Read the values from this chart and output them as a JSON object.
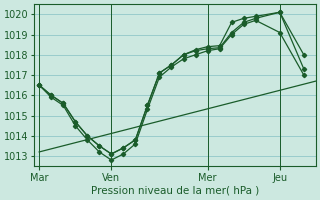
{
  "background_color": "#cce8e0",
  "grid_color": "#99cccc",
  "line_color": "#1a5c2a",
  "marker_color": "#1a5c2a",
  "xlabel": "Pression niveau de la mer( hPa )",
  "ylim": [
    1012.5,
    1020.5
  ],
  "yticks": [
    1013,
    1014,
    1015,
    1016,
    1017,
    1018,
    1019,
    1020
  ],
  "xtick_labels": [
    "Mar",
    "Ven",
    "Mer",
    "Jeu"
  ],
  "xtick_positions": [
    0,
    3,
    7,
    10
  ],
  "xlim": [
    -0.2,
    11.5
  ],
  "straight_line_x": [
    0,
    11.5
  ],
  "straight_line_y": [
    1013.2,
    1016.7
  ],
  "series1_x": [
    0,
    0.5,
    1,
    1.5,
    2,
    2.5,
    3,
    3.5,
    4,
    4.5,
    5,
    5.5,
    6,
    6.5,
    7,
    7.5,
    8,
    8.5,
    9,
    10,
    11
  ],
  "series1_y": [
    1016.5,
    1016.0,
    1015.6,
    1014.7,
    1014.0,
    1013.5,
    1013.1,
    1013.4,
    1013.8,
    1015.5,
    1017.1,
    1017.5,
    1018.0,
    1018.2,
    1018.3,
    1018.35,
    1019.1,
    1019.6,
    1019.8,
    1020.1,
    1018.0
  ],
  "series2_x": [
    0,
    0.5,
    1,
    1.5,
    2,
    2.5,
    3,
    3.5,
    4,
    4.5,
    5,
    5.5,
    6,
    6.5,
    7,
    7.5,
    8,
    8.5,
    9,
    10,
    11
  ],
  "series2_y": [
    1016.5,
    1015.9,
    1015.5,
    1014.5,
    1013.8,
    1013.2,
    1012.8,
    1013.1,
    1013.6,
    1015.3,
    1016.9,
    1017.4,
    1017.8,
    1018.0,
    1018.2,
    1018.3,
    1019.0,
    1019.5,
    1019.7,
    1019.1,
    1017.0
  ],
  "series3_x": [
    0,
    0.5,
    1,
    1.5,
    2,
    2.5,
    3,
    3.5,
    4,
    4.5,
    5,
    5.5,
    6,
    6.5,
    7,
    7.5,
    8,
    8.5,
    9,
    10,
    11
  ],
  "series3_y": [
    1016.5,
    1016.0,
    1015.6,
    1014.7,
    1014.0,
    1013.5,
    1013.1,
    1013.4,
    1013.8,
    1015.5,
    1017.1,
    1017.5,
    1018.0,
    1018.25,
    1018.4,
    1018.45,
    1019.6,
    1019.8,
    1019.9,
    1020.1,
    1017.3
  ]
}
